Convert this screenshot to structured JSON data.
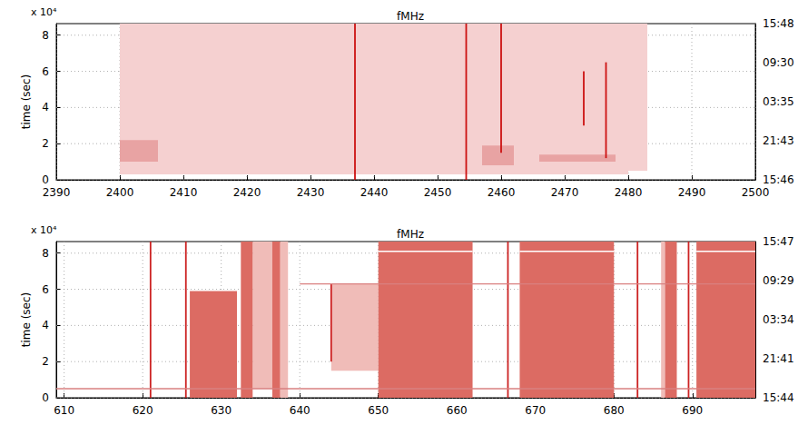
{
  "chart_data": [
    {
      "type": "spectrogram",
      "title": "fMHz",
      "y_label": "time (sec)",
      "y_multiplier": "x 10⁴",
      "xlim": [
        2390,
        2500
      ],
      "xticks": [
        2390,
        2400,
        2410,
        2420,
        2430,
        2440,
        2450,
        2460,
        2470,
        2480,
        2490,
        2500
      ],
      "ylim": [
        0,
        8.64
      ],
      "yticks": [
        0,
        2,
        4,
        6,
        8
      ],
      "y2lim": [
        0,
        8.64
      ],
      "y2ticks": [
        {
          "value": 0,
          "label": "15:46"
        },
        {
          "value": 2.16,
          "label": "21:43"
        },
        {
          "value": 4.32,
          "label": "03:35"
        },
        {
          "value": 6.48,
          "label": "09:30"
        },
        {
          "value": 8.64,
          "label": "15:48"
        }
      ],
      "grid": true,
      "series": [
        {
          "type": "region",
          "color": "#f5d0d0",
          "values": [
            [
              2400,
              2480,
              0.3,
              8.64
            ],
            [
              2480,
              2483,
              0.5,
              8.64
            ]
          ]
        },
        {
          "type": "region",
          "color": "#e8a3a3",
          "values": [
            [
              2457,
              2462,
              0.8,
              1.9
            ],
            [
              2466,
              2478,
              1.0,
              1.4
            ],
            [
              2400,
              2406,
              1.0,
              2.2
            ]
          ]
        },
        {
          "type": "vline",
          "color": "#cc1111",
          "values": [
            [
              2437,
              0,
              8.64
            ],
            [
              2454.5,
              0,
              8.64
            ],
            [
              2476.5,
              1.2,
              6.5
            ],
            [
              2473,
              3.0,
              6.0
            ],
            [
              2460,
              1.5,
              8.64
            ]
          ]
        }
      ]
    },
    {
      "type": "spectrogram",
      "title": "fMHz",
      "y_label": "time (sec)",
      "y_multiplier": "x 10⁴",
      "xlim": [
        609,
        698
      ],
      "xticks": [
        610,
        620,
        630,
        640,
        650,
        660,
        670,
        680,
        690
      ],
      "ylim": [
        0,
        8.64
      ],
      "yticks": [
        0,
        2,
        4,
        6,
        8
      ],
      "y2lim": [
        0,
        8.64
      ],
      "y2ticks": [
        {
          "value": 0,
          "label": "15:44"
        },
        {
          "value": 2.16,
          "label": "21:41"
        },
        {
          "value": 4.32,
          "label": "03:34"
        },
        {
          "value": 6.48,
          "label": "09:29"
        },
        {
          "value": 8.64,
          "label": "15:47"
        }
      ],
      "grid": true,
      "series": [
        {
          "type": "region",
          "color": "#f0bcb8",
          "values": [
            [
              634,
              636.5,
              0.5,
              8.64
            ],
            [
              644,
              650,
              1.5,
              6.3
            ],
            [
              637.5,
              638.5,
              0,
              8.64
            ],
            [
              686,
              686.5,
              0,
              8.64
            ]
          ]
        },
        {
          "type": "region",
          "color": "#dc6b63",
          "values": [
            [
              626,
              632,
              0,
              5.9
            ],
            [
              632.5,
              634,
              0,
              8.64
            ],
            [
              636.5,
              637.5,
              0,
              8.64
            ],
            [
              650,
              662,
              0,
              8.64
            ],
            [
              668,
              680,
              0,
              8.64
            ],
            [
              686.5,
              688,
              0,
              8.64
            ],
            [
              690.5,
              698,
              0,
              8.64
            ]
          ]
        },
        {
          "type": "hline",
          "color": "#ffffff",
          "values": [
            [
              8.1,
              650,
              662
            ],
            [
              8.1,
              668,
              680
            ],
            [
              8.1,
              690.5,
              698
            ]
          ]
        },
        {
          "type": "vline",
          "color": "#cc2222",
          "values": [
            [
              621,
              0,
              8.64
            ],
            [
              625.5,
              0,
              8.64
            ],
            [
              644,
              2.0,
              6.3
            ],
            [
              666.5,
              0,
              8.64
            ],
            [
              683,
              0,
              8.64
            ],
            [
              689.5,
              0,
              8.64
            ]
          ]
        },
        {
          "type": "hline",
          "color": "#d98080",
          "values": [
            [
              0.5,
              609,
              698
            ],
            [
              6.3,
              640,
              698
            ]
          ]
        }
      ]
    }
  ]
}
